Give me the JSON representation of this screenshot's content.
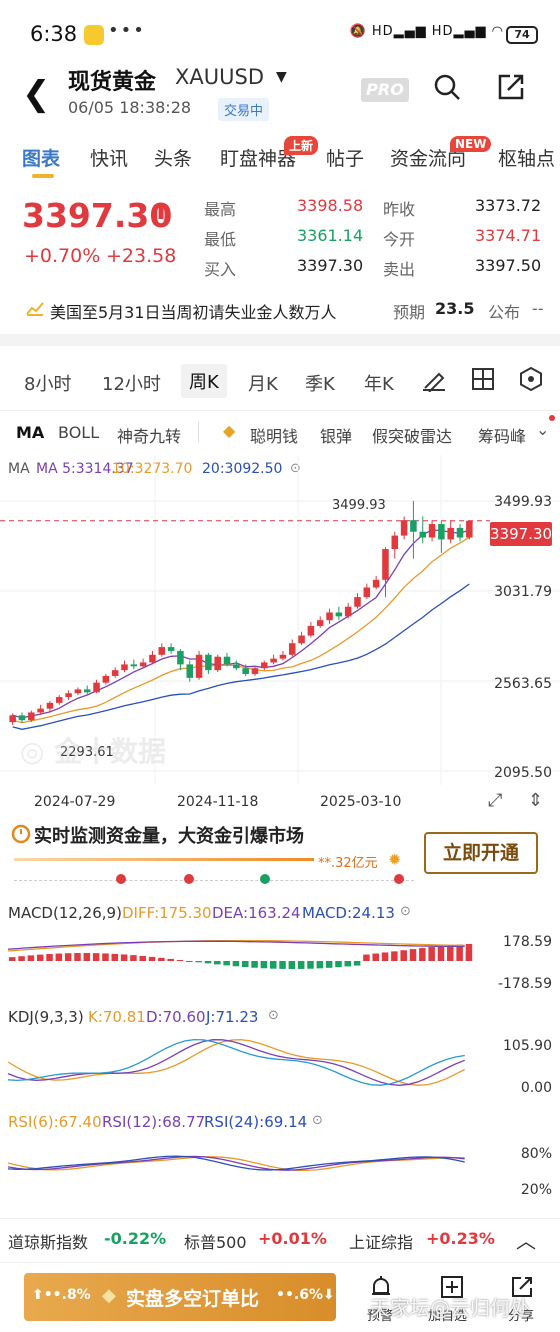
{
  "status_bar": {
    "time": "6:38",
    "battery": "74"
  },
  "header": {
    "title": "现货黄金",
    "symbol": "XAUUSD",
    "datetime": "06/05 18:38:28",
    "trading_status": "交易中",
    "pro_label": "PRO"
  },
  "tabs": [
    {
      "label": "图表"
    },
    {
      "label": "快讯"
    },
    {
      "label": "头条"
    },
    {
      "label": "盯盘神器",
      "badge": "上新"
    },
    {
      "label": "帖子"
    },
    {
      "label": "资金流向",
      "badge": "NEW"
    },
    {
      "label": "枢轴点"
    }
  ],
  "quote": {
    "price": "3397.30",
    "arrow": "⬆",
    "change_pct": "+0.70%",
    "change": "+23.58",
    "stats": [
      {
        "label": "最高",
        "value": "3398.58",
        "color": "#e0393e"
      },
      {
        "label": "昨收",
        "value": "3373.72",
        "color": "#222222"
      },
      {
        "label": "最低",
        "value": "3361.14",
        "color": "#19a063"
      },
      {
        "label": "今开",
        "value": "3374.71",
        "color": "#e0393e"
      },
      {
        "label": "买入",
        "value": "3397.30",
        "color": "#222222"
      },
      {
        "label": "卖出",
        "value": "3397.50",
        "color": "#222222"
      }
    ]
  },
  "news": {
    "text": "美国至5月31日当周初请失业金人数万人",
    "expect_label": "预期",
    "expect_value": "23.5",
    "publish_label": "公布",
    "publish_value": "--"
  },
  "periods": [
    "8小时",
    "12小时",
    "周K",
    "月K",
    "季K",
    "年K"
  ],
  "indicators": [
    "MA",
    "BOLL",
    "神奇九转",
    "聪明钱",
    "银弹",
    "假突破雷达",
    "筹码峰"
  ],
  "ma": {
    "ma5": "MA 5:3314.37",
    "ma10": "10:3273.70",
    "ma20": "20:3092.50"
  },
  "chart_data": {
    "type": "candlestick",
    "y_ticks": [
      "3499.93",
      "3031.79",
      "2563.65",
      "2095.50"
    ],
    "ylim": [
      2095.5,
      3499.93
    ],
    "x_ticks": [
      "2024-07-29",
      "2024-11-18",
      "2025-03-10"
    ],
    "current_price_label": "3397.30",
    "high_label": "3499.93",
    "low_label": "2293.61",
    "candles": [
      [
        2350,
        2385,
        2335,
        2395
      ],
      [
        2385,
        2360,
        2345,
        2400
      ],
      [
        2360,
        2400,
        2350,
        2410
      ],
      [
        2400,
        2420,
        2390,
        2440
      ],
      [
        2420,
        2450,
        2405,
        2460
      ],
      [
        2450,
        2480,
        2440,
        2490
      ],
      [
        2480,
        2500,
        2465,
        2515
      ],
      [
        2500,
        2520,
        2490,
        2530
      ],
      [
        2520,
        2505,
        2495,
        2540
      ],
      [
        2505,
        2555,
        2500,
        2570
      ],
      [
        2555,
        2590,
        2545,
        2600
      ],
      [
        2590,
        2620,
        2580,
        2635
      ],
      [
        2620,
        2650,
        2610,
        2670
      ],
      [
        2650,
        2640,
        2625,
        2675
      ],
      [
        2640,
        2660,
        2630,
        2680
      ],
      [
        2660,
        2700,
        2650,
        2720
      ],
      [
        2700,
        2740,
        2690,
        2760
      ],
      [
        2740,
        2720,
        2705,
        2760
      ],
      [
        2720,
        2650,
        2620,
        2730
      ],
      [
        2650,
        2580,
        2560,
        2670
      ],
      [
        2580,
        2700,
        2570,
        2720
      ],
      [
        2700,
        2620,
        2600,
        2710
      ],
      [
        2620,
        2690,
        2610,
        2700
      ],
      [
        2690,
        2650,
        2640,
        2710
      ],
      [
        2650,
        2630,
        2620,
        2670
      ],
      [
        2630,
        2600,
        2590,
        2650
      ],
      [
        2600,
        2630,
        2590,
        2640
      ],
      [
        2630,
        2660,
        2620,
        2670
      ],
      [
        2660,
        2680,
        2650,
        2700
      ],
      [
        2680,
        2700,
        2670,
        2720
      ],
      [
        2700,
        2760,
        2690,
        2780
      ],
      [
        2760,
        2800,
        2750,
        2820
      ],
      [
        2800,
        2850,
        2790,
        2870
      ],
      [
        2850,
        2880,
        2840,
        2900
      ],
      [
        2880,
        2920,
        2860,
        2940
      ],
      [
        2920,
        2900,
        2880,
        2950
      ],
      [
        2900,
        2950,
        2890,
        2970
      ],
      [
        2950,
        3000,
        2940,
        3020
      ],
      [
        3000,
        3050,
        2990,
        3070
      ],
      [
        3050,
        3090,
        3040,
        3110
      ],
      [
        3090,
        3250,
        3000,
        3260
      ],
      [
        3250,
        3320,
        3200,
        3340
      ],
      [
        3320,
        3400,
        3300,
        3420
      ],
      [
        3400,
        3340,
        3200,
        3500
      ],
      [
        3340,
        3310,
        3280,
        3420
      ],
      [
        3310,
        3380,
        3290,
        3400
      ],
      [
        3380,
        3300,
        3230,
        3395
      ],
      [
        3300,
        3360,
        3280,
        3400
      ],
      [
        3360,
        3310,
        3290,
        3380
      ],
      [
        3310,
        3397,
        3300,
        3400
      ]
    ]
  },
  "promo": {
    "title": "实时监测资金量，大资金引爆市场",
    "amount": "**.32亿元",
    "button": "立即开通"
  },
  "macd": {
    "name": "MACD(12,26,9)",
    "diff": "DIFF:175.30",
    "dea": "DEA:163.24",
    "macd": "MACD:24.13",
    "top": "178.59",
    "bottom": "-178.59"
  },
  "kdj": {
    "name": "KDJ(9,3,3)",
    "k": "K:70.81",
    "d": "D:70.60",
    "j": "J:71.23",
    "top": "105.90",
    "bottom": "0.00"
  },
  "rsi": {
    "name": "RSI(6):67.40",
    "rsi12": "RSI(12):68.77",
    "rsi24": "RSI(24):69.14",
    "top": "80%",
    "bottom": "20%"
  },
  "index_bar": [
    {
      "name": "道琼斯指数",
      "value": "-0.22%",
      "color": "#19a063"
    },
    {
      "name": "标普500",
      "value": "+0.01%",
      "color": "#e0393e"
    },
    {
      "name": "上证综指",
      "value": "+0.23%",
      "color": "#e0393e"
    }
  ],
  "action_bar": {
    "left_pct": "⬆••.8%",
    "title": "实盘多空订单比",
    "right_pct": "••.6%⬇",
    "actions": [
      {
        "label": "预警"
      },
      {
        "label": "加自选"
      },
      {
        "label": "分享"
      }
    ]
  },
  "watermark": "天家坛@云归何处"
}
